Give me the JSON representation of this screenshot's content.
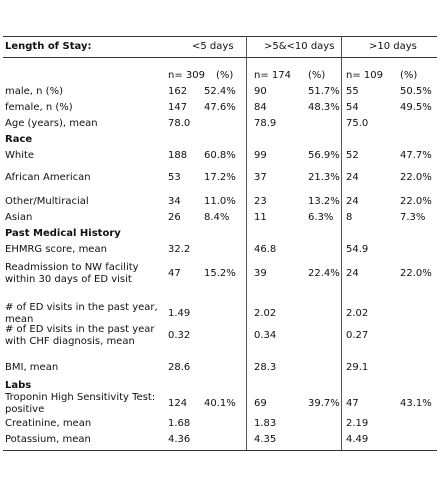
{
  "header": {
    "label": "Length of Stay:",
    "groups": [
      "<5 days",
      ">5&<10 days",
      ">10 days"
    ],
    "n_labels": [
      "n= 309",
      "n= 174",
      "n= 109"
    ],
    "pct_label": "(%)"
  },
  "rows": [
    {
      "label": [
        "male, n (%)"
      ],
      "cells": [
        "162",
        "52.4%",
        "90",
        "51.7%",
        "55",
        "50.5%"
      ]
    },
    {
      "label": [
        "female, n (%)"
      ],
      "cells": [
        "147",
        "47.6%",
        "84",
        "48.3%",
        "54",
        "49.5%"
      ]
    },
    {
      "label": [
        "Age (years), mean"
      ],
      "cells": [
        "78.0",
        "",
        "78.9",
        "",
        "75.0",
        ""
      ]
    },
    {
      "label": [
        "Race"
      ],
      "section": true,
      "cells": []
    },
    {
      "label": [
        "White"
      ],
      "cells": [
        "188",
        "60.8%",
        "99",
        "56.9%",
        "52",
        "47.7%"
      ]
    },
    {
      "label": [
        "African American"
      ],
      "cells": [
        "53",
        "17.2%",
        "37",
        "21.3%",
        "24",
        "22.0%"
      ]
    },
    {
      "label": [
        "Other/Multiracial"
      ],
      "cells": [
        "34",
        "11.0%",
        "23",
        "13.2%",
        "24",
        "22.0%"
      ]
    },
    {
      "label": [
        "Asian"
      ],
      "cells": [
        "26",
        "8.4%",
        "11",
        "6.3%",
        "8",
        "7.3%"
      ]
    },
    {
      "label": [
        "Past Medical History"
      ],
      "section": true,
      "cells": []
    },
    {
      "label": [
        "EHMRG score, mean"
      ],
      "cells": [
        "32.2",
        "",
        "46.8",
        "",
        "54.9",
        ""
      ]
    },
    {
      "label": [
        "Readmission to NW facility",
        "within 30 days of ED visit"
      ],
      "cells": [
        "47",
        "15.2%",
        "39",
        "22.4%",
        "24",
        "22.0%"
      ]
    },
    {
      "label": [
        "# of ED visits in the past year,",
        "mean"
      ],
      "cells": [
        "1.49",
        "",
        "2.02",
        "",
        "2.02",
        ""
      ]
    },
    {
      "label": [
        "# of ED visits in the past year",
        "with CHF diagnosis, mean"
      ],
      "cells": [
        "0.32",
        "",
        "0.34",
        "",
        "0.27",
        ""
      ]
    },
    {
      "label": [
        "BMI, mean"
      ],
      "cells": [
        "28.6",
        "",
        "28.3",
        "",
        "29.1",
        ""
      ]
    },
    {
      "label": [
        "Labs"
      ],
      "section": true,
      "cells": []
    },
    {
      "label": [
        "Troponin High Sensitivity Test:",
        "positive"
      ],
      "cells": [
        "124",
        "40.1%",
        "69",
        "39.7%",
        "47",
        "43.1%"
      ]
    },
    {
      "label": [
        "Creatinine, mean"
      ],
      "cells": [
        "1.68",
        "",
        "1.83",
        "",
        "2.19",
        ""
      ]
    },
    {
      "label": [
        "Potassium, mean"
      ],
      "cells": [
        "4.36",
        "",
        "4.35",
        "",
        "4.49",
        ""
      ]
    }
  ]
}
